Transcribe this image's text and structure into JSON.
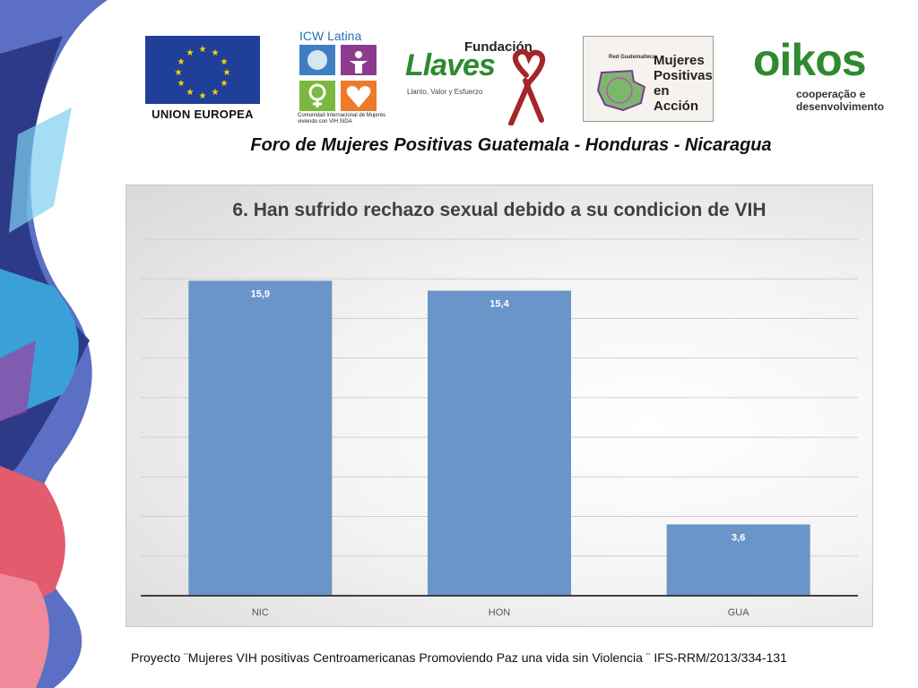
{
  "header": {
    "logos": {
      "eu_label": "UNION EUROPEA",
      "icw_title": "ICW Latina",
      "icw_subtitle": "Comunidad Internacional de Mujeres viviendo con VIH SIDA",
      "llaves_top": "Fundación",
      "llaves_main": "Llaves",
      "llaves_sub": "Llanto, Valor y Esfuerzo",
      "red_small": "Red Guatemalteca",
      "red_main": "Mujeres Positivas en Acción",
      "oikos_main": "oikos",
      "oikos_sub": "cooperação e desenvolvimento"
    },
    "forum_title": "Foro de Mujeres Positivas Guatemala - Honduras - Nicaragua"
  },
  "chart_data": {
    "type": "bar",
    "title": "6. Han sufrido rechazo sexual debido a su condicion de VIH",
    "categories": [
      "NIC",
      "HON",
      "GUA"
    ],
    "values": [
      15.9,
      15.4,
      3.6
    ],
    "value_labels": [
      "15,9",
      "15,4",
      "3,6"
    ],
    "xlabel": "",
    "ylabel": "",
    "ylim": [
      0,
      18
    ],
    "grid": true,
    "legend": "none",
    "bar_color": "#6a95c9"
  },
  "footer": {
    "text": "Proyecto ¨Mujeres VIH positivas Centroamericanas Promoviendo Paz una vida sin Violencia ¨ IFS-RRM/2013/334-131"
  }
}
